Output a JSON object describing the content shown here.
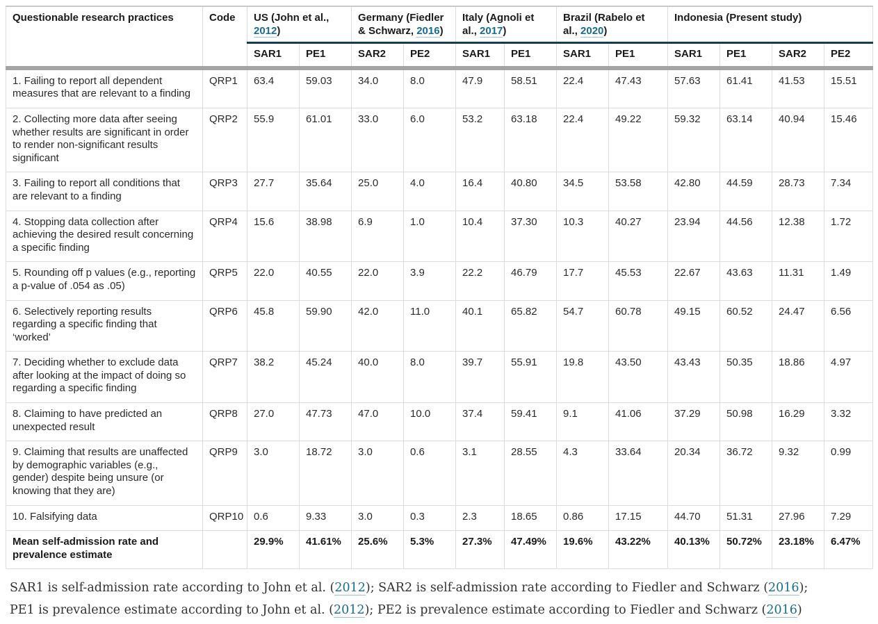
{
  "table": {
    "columns": {
      "practices": "Questionable research practices",
      "code": "Code"
    },
    "groups": [
      {
        "pre": "US (John et al., ",
        "link": "2012",
        "post": ")",
        "span": 2
      },
      {
        "pre": "Germany (Fiedler & Schwarz, ",
        "link": "2016",
        "post": ")",
        "span": 2
      },
      {
        "pre": "Italy (Agnoli et al., ",
        "link": "2017",
        "post": ")",
        "span": 2
      },
      {
        "pre": "Brazil (Rabelo et al., ",
        "link": "2020",
        "post": ")",
        "span": 2
      },
      {
        "pre": "Indonesia (Present study)",
        "link": null,
        "post": "",
        "span": 4
      }
    ],
    "subheaders": [
      "SAR1",
      "PE1",
      "SAR2",
      "PE2",
      "SAR1",
      "PE1",
      "SAR1",
      "PE1",
      "SAR1",
      "PE1",
      "SAR2",
      "PE2"
    ],
    "rows": [
      {
        "label": "1. Failing to report all dependent measures that are relevant to a finding",
        "code": "QRP1",
        "values": [
          "63.4",
          "59.03",
          "34.0",
          "8.0",
          "47.9",
          "58.51",
          "22.4",
          "47.43",
          "57.63",
          "61.41",
          "41.53",
          "15.51"
        ]
      },
      {
        "label": "2. Collecting more data after seeing whether results are significant in order to render non-significant results significant",
        "code": "QRP2",
        "values": [
          "55.9",
          "61.01",
          "33.0",
          "6.0",
          "53.2",
          "63.18",
          "22.4",
          "49.22",
          "59.32",
          "63.14",
          "40.94",
          "15.46"
        ]
      },
      {
        "label": "3. Failing to report all conditions that are relevant to a finding",
        "code": "QRP3",
        "values": [
          "27.7",
          "35.64",
          "25.0",
          "4.0",
          "16.4",
          "40.80",
          "34.5",
          "53.58",
          "42.80",
          "44.59",
          "28.73",
          "7.34"
        ]
      },
      {
        "label": "4. Stopping data collection after achieving the desired result concerning a specific finding",
        "code": "QRP4",
        "values": [
          "15.6",
          "38.98",
          "6.9",
          "1.0",
          "10.4",
          "37.30",
          "10.3",
          "40.27",
          "23.94",
          "44.56",
          "12.38",
          "1.72"
        ]
      },
      {
        "label": "5. Rounding off p values (e.g., reporting a p-value of .054 as .05)",
        "code": "QRP5",
        "values": [
          "22.0",
          "40.55",
          "22.0",
          "3.9",
          "22.2",
          "46.79",
          "17.7",
          "45.53",
          "22.67",
          "43.63",
          "11.31",
          "1.49"
        ]
      },
      {
        "label": "6. Selectively reporting results regarding a specific finding that ‘worked’",
        "code": "QRP6",
        "values": [
          "45.8",
          "59.90",
          "42.0",
          "11.0",
          "40.1",
          "65.82",
          "54.7",
          "60.78",
          "49.15",
          "60.52",
          "24.47",
          "6.56"
        ]
      },
      {
        "label": "7. Deciding whether to exclude data after looking at the impact of doing so regarding a specific finding",
        "code": "QRP7",
        "values": [
          "38.2",
          "45.24",
          "40.0",
          "8.0",
          "39.7",
          "55.91",
          "19.8",
          "43.50",
          "43.43",
          "50.35",
          "18.86",
          "4.97"
        ]
      },
      {
        "label": "8. Claiming to have predicted an unexpected result",
        "code": "QRP8",
        "values": [
          "27.0",
          "47.73",
          "47.0",
          "10.0",
          "37.4",
          "59.41",
          "9.1",
          "41.06",
          "37.29",
          "50.98",
          "16.29",
          "3.32"
        ]
      },
      {
        "label": "9. Claiming that results are unaffected by demographic variables (e.g., gender) despite being unsure (or knowing that they are)",
        "code": "QRP9",
        "values": [
          "3.0",
          "18.72",
          "3.0",
          "0.6",
          "3.1",
          "28.55",
          "4.3",
          "33.64",
          "20.34",
          "36.72",
          "9.32",
          "0.99"
        ]
      },
      {
        "label": "10. Falsifying data",
        "code": "QRP10",
        "values": [
          "0.6",
          "9.33",
          "3.0",
          "0.3",
          "2.3",
          "18.65",
          "0.86",
          "17.15",
          "44.70",
          "51.31",
          "27.96",
          "7.29"
        ]
      }
    ],
    "mean_row": {
      "label": "Mean self-admission rate and prevalence estimate",
      "code": "",
      "values": [
        "29.9%",
        "41.61%",
        "25.6%",
        "5.3%",
        "27.3%",
        "47.49%",
        "19.6%",
        "43.22%",
        "40.13%",
        "50.72%",
        "23.18%",
        "6.47%"
      ]
    }
  },
  "footnote": {
    "segments": [
      {
        "text": "SAR1 is self-admission rate according to John et al. ("
      },
      {
        "link": "2012"
      },
      {
        "text": "); SAR2 is self-admission rate according to Fiedler and Schwarz ("
      },
      {
        "link": "2016"
      },
      {
        "text": "); PE1 is prevalence estimate according to John et al. ("
      },
      {
        "link": "2012"
      },
      {
        "text": "); PE2 is prevalence estimate according to Fiedler and Schwarz ("
      },
      {
        "link": "2016"
      },
      {
        "text": ")"
      }
    ]
  },
  "colors": {
    "accent_link": "#176d8f",
    "header_rule": "#133c56",
    "thick_rule": "#a4a4a4",
    "cell_border": "#dcdcdc"
  }
}
